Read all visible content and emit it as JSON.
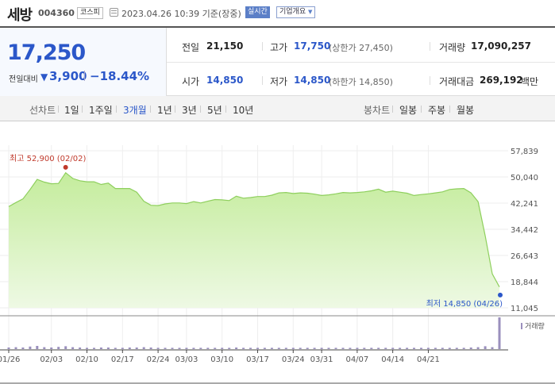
{
  "header": {
    "name": "세방",
    "code": "004360",
    "market": "코스피",
    "timestamp": "2023.04.26 10:39 기준(장중)",
    "realtime_label": "실시간",
    "overview_label": "기업개요",
    "overview_caret": "▼"
  },
  "quote": {
    "current_price": "17,250",
    "change_label": "전일대비",
    "change_icon": "▼",
    "change_amount": "3,900",
    "change_rate": "−18.44%",
    "prev_close_label": "전일",
    "prev_close": "21,150",
    "high_label": "고가",
    "high": "17,750",
    "upper_limit": "(상한가 27,450)",
    "volume_label": "거래량",
    "volume": "17,090,257",
    "open_label": "시가",
    "open": "14,850",
    "low_label": "저가",
    "low": "14,850",
    "lower_limit": "(하한가 14,850)",
    "trade_value_label": "거래대금",
    "trade_value": "269,192",
    "trade_value_unit": "백만"
  },
  "period_bar": {
    "line_label": "선차트",
    "line_periods": [
      "1일",
      "1주일",
      "3개월",
      "1년",
      "3년",
      "5년",
      "10년"
    ],
    "active_period": "3개월",
    "candle_label": "봉차트",
    "candle_periods": [
      "일봉",
      "주봉",
      "월봉"
    ]
  },
  "chart_data": {
    "type": "area",
    "y_ticks": [
      "57,839",
      "50,040",
      "42,241",
      "34,442",
      "26,643",
      "18,844",
      "11,045"
    ],
    "ylim": [
      11045,
      57839
    ],
    "x_tick_labels": [
      "01/26",
      "02/03",
      "02/10",
      "02/17",
      "02/24",
      "03/03",
      "03/10",
      "03/17",
      "03/24",
      "03/31",
      "04/07",
      "04/14",
      "04/21"
    ],
    "x_tick_index": [
      0,
      6,
      11,
      16,
      21,
      25,
      30,
      35,
      40,
      44,
      49,
      54,
      59
    ],
    "prices": [
      41200,
      42400,
      43500,
      46300,
      49300,
      48500,
      48000,
      48100,
      51300,
      49600,
      48900,
      48600,
      48600,
      47800,
      48200,
      46600,
      46600,
      46600,
      45500,
      42800,
      41600,
      41500,
      42000,
      42300,
      42300,
      42100,
      42700,
      42300,
      42800,
      43300,
      43200,
      43000,
      44300,
      43700,
      43900,
      44200,
      44200,
      44600,
      45300,
      45400,
      45100,
      45300,
      45200,
      44900,
      44500,
      44700,
      45000,
      45400,
      45300,
      45400,
      45600,
      45900,
      46400,
      45500,
      45800,
      45500,
      45200,
      44500,
      44800,
      45000,
      45300,
      45600,
      46300,
      46500,
      46600,
      45300,
      42700,
      32500,
      21150,
      17250
    ],
    "high_annotation": "최고 52,900 (02/02)",
    "high_value": 52900,
    "high_index": 8,
    "low_annotation": "최저 14,850 (04/26)",
    "low_value": 14850,
    "low_index": 69,
    "volume_label": "거래량",
    "volume_rel": [
      0.05,
      0.06,
      0.05,
      0.08,
      0.1,
      0.06,
      0.05,
      0.07,
      0.09,
      0.06,
      0.05,
      0.04,
      0.04,
      0.05,
      0.05,
      0.04,
      0.04,
      0.05,
      0.05,
      0.06,
      0.05,
      0.04,
      0.04,
      0.04,
      0.04,
      0.04,
      0.04,
      0.04,
      0.04,
      0.04,
      0.04,
      0.04,
      0.05,
      0.04,
      0.04,
      0.04,
      0.04,
      0.04,
      0.04,
      0.04,
      0.04,
      0.04,
      0.04,
      0.04,
      0.04,
      0.04,
      0.04,
      0.04,
      0.04,
      0.04,
      0.04,
      0.04,
      0.04,
      0.04,
      0.04,
      0.04,
      0.04,
      0.04,
      0.04,
      0.04,
      0.04,
      0.04,
      0.04,
      0.04,
      0.04,
      0.05,
      0.06,
      0.09,
      0.06,
      1.0
    ],
    "colors": {
      "area_top": "#c4ec9c",
      "area_bottom": "#eef9e4",
      "line": "#8ecf5d",
      "volume": "#9a8fbd",
      "high": "#c0392b",
      "low": "#2b57c9"
    }
  }
}
